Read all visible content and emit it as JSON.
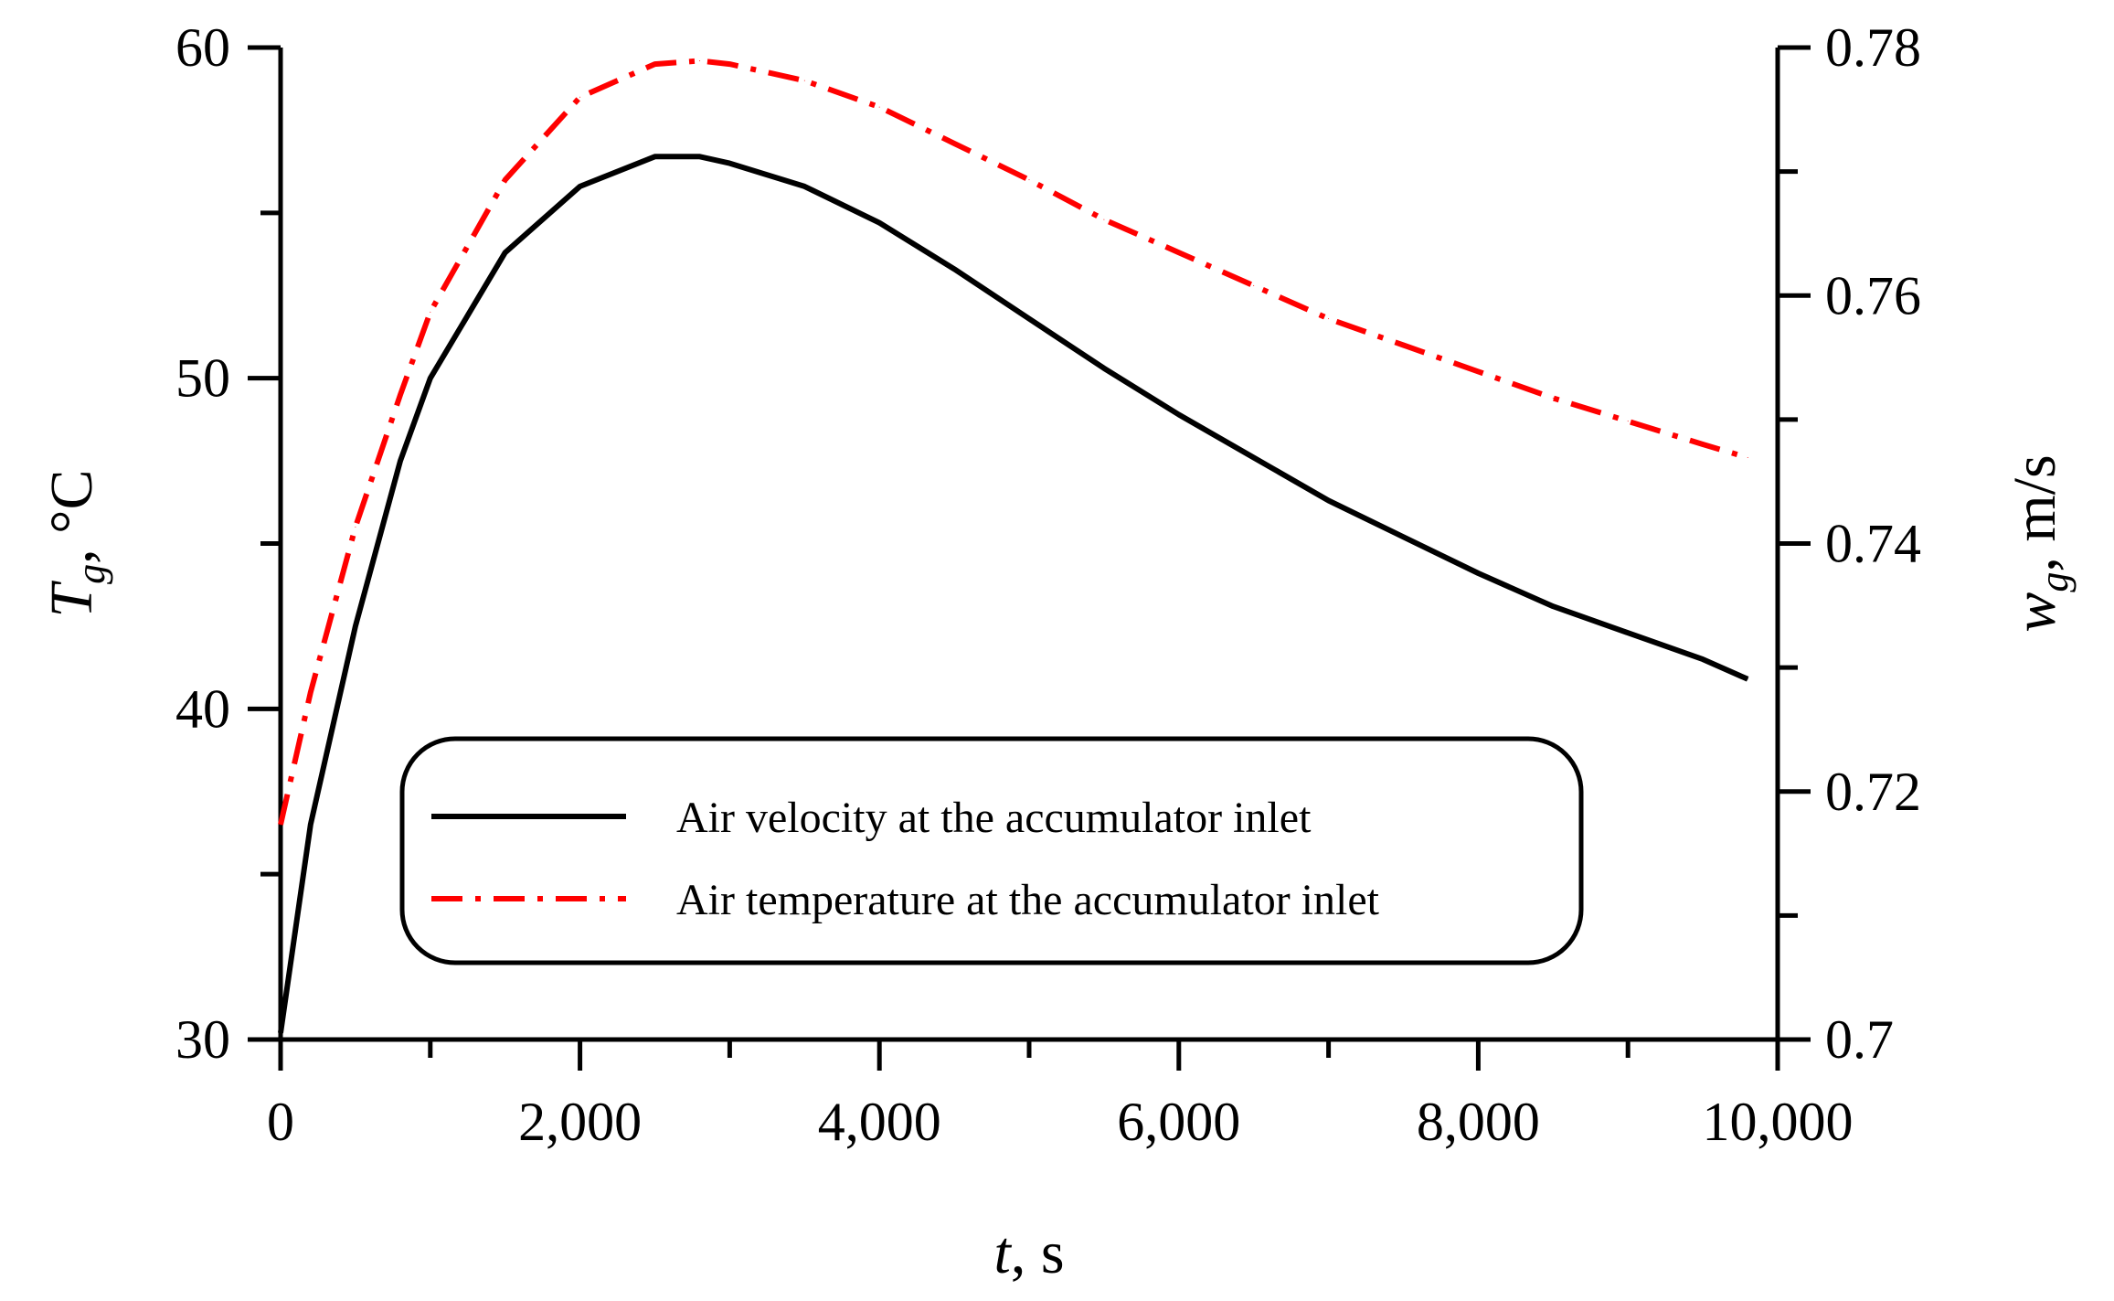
{
  "chart_data": {
    "type": "line",
    "x": [
      0,
      200,
      500,
      800,
      1000,
      1500,
      2000,
      2500,
      2800,
      3000,
      3500,
      4000,
      4500,
      5000,
      5500,
      6000,
      6500,
      7000,
      7500,
      8000,
      8500,
      9000,
      9500,
      9800
    ],
    "series": [
      {
        "name": "Air velocity at the accumulator inlet",
        "axis": "left",
        "color": "#000000",
        "dash": "solid",
        "values": [
          30.2,
          36.5,
          42.5,
          47.5,
          50.0,
          53.8,
          55.8,
          56.7,
          56.7,
          56.5,
          55.8,
          54.7,
          53.3,
          51.8,
          50.3,
          48.9,
          47.6,
          46.3,
          45.2,
          44.1,
          43.1,
          42.3,
          41.5,
          40.9
        ]
      },
      {
        "name": "Air temperature at the accumulator inlet",
        "axis": "left",
        "color": "#ff0000",
        "dash": "dash-dot",
        "values": [
          36.5,
          40.5,
          45.5,
          49.5,
          52.0,
          56.0,
          58.5,
          59.5,
          59.6,
          59.5,
          59.0,
          58.2,
          57.1,
          56.0,
          54.8,
          53.8,
          52.8,
          51.8,
          51.0,
          50.2,
          49.4,
          48.7,
          48.0,
          47.6
        ]
      }
    ],
    "xlabel": {
      "main": "t",
      "unit": ", s"
    },
    "ylabel_left": {
      "main": "T",
      "sub": "g",
      "unit": ", °C"
    },
    "ylabel_right": {
      "main": "w",
      "sub": "g",
      "unit": ", m/s"
    },
    "xlim": [
      0,
      10000
    ],
    "ylim_left": [
      30,
      60
    ],
    "ylim_right": [
      0.7,
      0.78
    ],
    "x_ticks": [
      "0",
      "2,000",
      "4,000",
      "6,000",
      "8,000",
      "10,000"
    ],
    "y_left_ticks": [
      "30",
      "40",
      "50",
      "60"
    ],
    "y_right_ticks": [
      "0.7",
      "0.72",
      "0.74",
      "0.76",
      "0.78"
    ],
    "legend_position": "lower-center",
    "grid": false
  }
}
